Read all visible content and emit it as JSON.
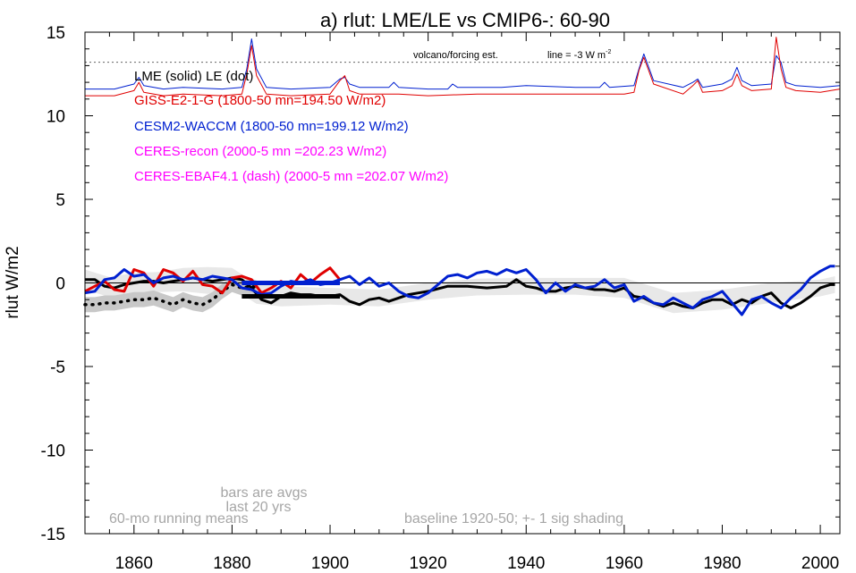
{
  "chart_data": {
    "type": "line",
    "title": "a) rlut: LME/LE vs CMIP6-: 60-90",
    "xlabel": "",
    "ylabel": "rlut W/m2",
    "xlim": [
      1850,
      2004
    ],
    "ylim": [
      -15,
      15
    ],
    "x_ticks": [
      1860,
      1880,
      1900,
      1920,
      1940,
      1960,
      1980,
      2000
    ],
    "y_ticks": [
      15,
      10,
      5,
      0,
      -5,
      -10,
      -15
    ],
    "annotations": {
      "volcano_label": "volcano/forcing est.",
      "line_label": "line = -3 W m",
      "line_label_sup": "-2",
      "lme_le": "LME (solid)   LE (dot)",
      "bars_note_1": "bars are avgs",
      "bars_note_2": "last 20 yrs",
      "running_mean": "60-mo running means",
      "baseline": "baseline 1920-50; +- 1 sig shading"
    },
    "legend": [
      {
        "label": "GISS-E2-1-G (1800-50 mn=194.50 W/m2)",
        "color": "#e00000"
      },
      {
        "label": "CESM2-WACCM (1800-50 mn=199.12 W/m2)",
        "color": "#0020d0"
      },
      {
        "label": "CERES-recon (2000-5 mn =202.23 W/m2)",
        "color": "#ff00ff"
      },
      {
        "label": "CERES-EBAF4.1 (dash) (2000-5 mn =202.07 W/m2)",
        "color": "#ff00ff"
      }
    ],
    "reference_line_y": 13.2,
    "series": [
      {
        "name": "CESM2-WACCM",
        "role": "volcano-forcing",
        "color": "#0020d0",
        "x": [
          1850,
          1856,
          1860,
          1861,
          1862,
          1866,
          1870,
          1878,
          1882,
          1883,
          1884,
          1885,
          1887,
          1892,
          1900,
          1902,
          1903,
          1904,
          1906,
          1912,
          1913,
          1914,
          1920,
          1924,
          1925,
          1926,
          1935,
          1940,
          1950,
          1955,
          1956,
          1957,
          1962,
          1963,
          1964,
          1966,
          1972,
          1974,
          1975,
          1976,
          1980,
          1982,
          1983,
          1984,
          1986,
          1990,
          1991,
          1992,
          1993,
          1995,
          2000,
          2004
        ],
        "y": [
          11.6,
          11.6,
          11.9,
          12.3,
          11.8,
          11.6,
          11.7,
          11.6,
          11.7,
          12.8,
          14.6,
          12.8,
          11.7,
          11.6,
          11.7,
          12.2,
          12.3,
          11.9,
          11.7,
          11.7,
          12.0,
          11.7,
          11.6,
          11.6,
          11.9,
          11.7,
          11.7,
          11.8,
          11.7,
          11.7,
          12.0,
          11.7,
          11.8,
          12.8,
          13.7,
          12.1,
          11.7,
          12.0,
          12.2,
          11.7,
          11.9,
          12.2,
          12.9,
          12.1,
          11.8,
          11.9,
          13.6,
          13.2,
          12.0,
          11.8,
          11.7,
          11.8
        ]
      },
      {
        "name": "GISS-E2-1-G",
        "role": "volcano-forcing",
        "color": "#e00000",
        "x": [
          1850,
          1856,
          1860,
          1861,
          1862,
          1866,
          1870,
          1878,
          1882,
          1883,
          1884,
          1885,
          1887,
          1892,
          1900,
          1902,
          1903,
          1904,
          1906,
          1912,
          1914,
          1920,
          1930,
          1940,
          1950,
          1960,
          1962,
          1963,
          1964,
          1966,
          1972,
          1974,
          1975,
          1976,
          1980,
          1982,
          1983,
          1984,
          1986,
          1990,
          1991,
          1992,
          1993,
          1995,
          2000,
          2004
        ],
        "y": [
          11.2,
          11.2,
          11.5,
          12.0,
          11.4,
          11.2,
          11.3,
          11.2,
          11.3,
          12.5,
          14.2,
          12.4,
          11.3,
          11.2,
          11.3,
          12.1,
          12.4,
          11.5,
          11.3,
          11.3,
          11.3,
          11.2,
          11.3,
          11.3,
          11.3,
          11.3,
          11.4,
          12.7,
          13.5,
          11.9,
          11.3,
          11.8,
          12.1,
          11.4,
          11.5,
          11.8,
          12.5,
          11.8,
          11.5,
          11.6,
          14.7,
          12.8,
          11.7,
          11.5,
          11.4,
          11.6
        ]
      },
      {
        "name": "LME CESM",
        "role": "anomaly-solid",
        "color": "#000000",
        "x": [
          1850,
          1852,
          1854,
          1856,
          1858,
          1860,
          1862,
          1864,
          1866,
          1868,
          1870,
          1872,
          1874,
          1876,
          1878,
          1880,
          1882,
          1884,
          1886,
          1888,
          1890,
          1892,
          1894,
          1896,
          1898,
          1900,
          1902,
          1904,
          1906,
          1908,
          1910,
          1912,
          1914,
          1916,
          1918,
          1920,
          1924,
          1928,
          1932,
          1936,
          1938,
          1940,
          1942,
          1944,
          1946,
          1948,
          1950,
          1954,
          1956,
          1958,
          1960,
          1962,
          1964,
          1966,
          1968,
          1970,
          1972,
          1974,
          1976,
          1978,
          1980,
          1982,
          1984,
          1986,
          1988,
          1990,
          1992,
          1994,
          1996,
          1998,
          2000,
          2002,
          2003
        ],
        "y": [
          0.2,
          0.2,
          -0.2,
          -0.3,
          -0.1,
          0.0,
          0.1,
          0.1,
          0.0,
          0.1,
          0.2,
          0.3,
          0.2,
          0.1,
          0.2,
          0.3,
          0.2,
          -0.3,
          -1.0,
          -1.2,
          -0.8,
          -0.6,
          -0.7,
          -0.7,
          -0.8,
          -0.8,
          -0.7,
          -1.1,
          -1.3,
          -1.0,
          -0.9,
          -1.1,
          -0.9,
          -0.7,
          -0.6,
          -0.5,
          -0.2,
          -0.2,
          -0.3,
          -0.2,
          0.2,
          -0.2,
          -0.3,
          -0.5,
          -0.5,
          -0.3,
          -0.2,
          -0.4,
          -0.4,
          -0.5,
          -0.3,
          -0.8,
          -0.9,
          -1.2,
          -1.4,
          -1.2,
          -1.4,
          -1.5,
          -1.2,
          -1.0,
          -1.0,
          -1.3,
          -1.0,
          -1.2,
          -0.8,
          -0.6,
          -1.2,
          -1.5,
          -1.2,
          -0.8,
          -0.3,
          -0.1,
          -0.1
        ]
      },
      {
        "name": "LE CESM",
        "role": "anomaly-dot",
        "color": "#000000",
        "x": [
          1850,
          1852,
          1854,
          1856,
          1858,
          1860,
          1862,
          1864,
          1866,
          1868,
          1870,
          1872,
          1874,
          1876,
          1878,
          1880,
          1882,
          1884,
          1885
        ],
        "y": [
          -1.3,
          -1.3,
          -1.2,
          -1.2,
          -1.1,
          -1.0,
          -1.0,
          -0.9,
          -1.1,
          -1.3,
          -1.0,
          -1.2,
          -1.3,
          -1.0,
          -0.5,
          -0.1,
          -0.3,
          -0.2,
          -0.3
        ]
      },
      {
        "name": "GISS-E2-1-G",
        "role": "anomaly",
        "color": "#e00000",
        "x": [
          1850,
          1852,
          1854,
          1856,
          1858,
          1860,
          1862,
          1864,
          1866,
          1868,
          1870,
          1872,
          1874,
          1876,
          1878,
          1880,
          1882,
          1884,
          1886,
          1888,
          1890,
          1892,
          1894,
          1896,
          1898,
          1900,
          1902
        ],
        "y": [
          -0.5,
          -0.2,
          0.1,
          -0.4,
          -0.5,
          0.8,
          0.6,
          -0.2,
          0.8,
          0.6,
          0.1,
          0.7,
          -0.1,
          -0.2,
          -0.6,
          0.3,
          0.4,
          0.2,
          -0.6,
          -0.3,
          0.1,
          -0.3,
          0.5,
          0.0,
          0.5,
          0.9,
          0.2
        ]
      },
      {
        "name": "CESM2-WACCM",
        "role": "anomaly",
        "color": "#0020d0",
        "x": [
          1850,
          1852,
          1854,
          1856,
          1858,
          1860,
          1862,
          1864,
          1866,
          1868,
          1870,
          1872,
          1874,
          1876,
          1878,
          1880,
          1882,
          1884,
          1886,
          1888,
          1890,
          1892,
          1894,
          1896,
          1898,
          1900,
          1902,
          1904,
          1906,
          1908,
          1910,
          1912,
          1914,
          1916,
          1918,
          1920,
          1922,
          1924,
          1926,
          1928,
          1930,
          1932,
          1934,
          1936,
          1938,
          1940,
          1942,
          1944,
          1946,
          1948,
          1950,
          1952,
          1954,
          1956,
          1958,
          1960,
          1962,
          1964,
          1966,
          1968,
          1970,
          1972,
          1974,
          1976,
          1978,
          1980,
          1982,
          1984,
          1986,
          1988,
          1990,
          1992,
          1994,
          1996,
          1998,
          2000,
          2002,
          2003
        ],
        "y": [
          -0.6,
          -0.5,
          0.2,
          0.3,
          0.8,
          0.4,
          0.5,
          0.0,
          0.3,
          0.4,
          0.2,
          0.3,
          0.2,
          0.4,
          0.3,
          0.2,
          -0.3,
          -0.4,
          -0.7,
          -0.6,
          -0.2,
          0.1,
          0.0,
          0.2,
          -0.1,
          0.0,
          0.2,
          0.4,
          -0.1,
          0.3,
          -0.2,
          0.0,
          -0.5,
          -0.8,
          -0.9,
          -0.6,
          -0.1,
          0.4,
          0.5,
          0.3,
          0.6,
          0.7,
          0.5,
          0.8,
          0.6,
          0.8,
          0.2,
          -0.6,
          0.0,
          -0.5,
          -0.1,
          -0.3,
          -0.2,
          0.2,
          -0.3,
          -0.1,
          -1.1,
          -0.8,
          -1.2,
          -1.3,
          -0.9,
          -1.2,
          -1.5,
          -1.0,
          -0.8,
          -0.5,
          -1.2,
          -1.9,
          -1.0,
          -0.8,
          -1.2,
          -1.5,
          -0.9,
          -0.4,
          0.3,
          0.7,
          1.0,
          1.0
        ]
      }
    ],
    "bars": [
      {
        "name": "GISS-E2-1-G 20-yr avg",
        "color": "#e00000",
        "x": [
          1882,
          1902
        ],
        "y": 0.0
      },
      {
        "name": "CESM2-WACCM 20-yr avg",
        "color": "#0020d0",
        "x": [
          1882,
          1902
        ],
        "y": 0.0
      },
      {
        "name": "LME 20-yr avg",
        "color": "#000000",
        "x": [
          1882,
          1902
        ],
        "y": -0.8
      }
    ],
    "shading": {
      "x": [
        1850,
        1855,
        1860,
        1865,
        1870,
        1875,
        1880,
        1885,
        1890,
        1900,
        1910,
        1920,
        1930,
        1940,
        1950,
        1960,
        1970,
        1980,
        1990,
        2000,
        2003
      ],
      "sigma": [
        0.6,
        0.6,
        0.6,
        0.6,
        0.7,
        0.8,
        0.6,
        0.6,
        0.6,
        0.5,
        0.5,
        0.5,
        0.5,
        0.5,
        0.5,
        0.6,
        0.6,
        0.6,
        0.6,
        0.5,
        0.5
      ]
    }
  }
}
